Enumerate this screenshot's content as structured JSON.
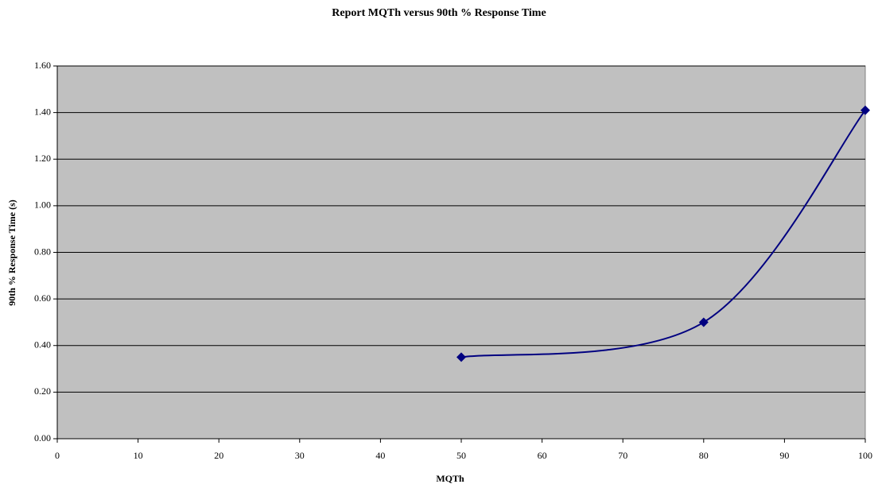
{
  "chart_data": {
    "type": "line",
    "title": "Report MQTh versus 90th % Response Time",
    "x_label": "MQTh",
    "y_label": "90th % Response Time (s)",
    "x": [
      50,
      80,
      100
    ],
    "series": [
      {
        "color": "#000080",
        "values": [
          0.35,
          0.5,
          1.41
        ]
      }
    ],
    "xlim": [
      0,
      100
    ],
    "xticks": [
      0,
      10,
      20,
      30,
      40,
      50,
      60,
      70,
      80,
      90,
      100
    ],
    "ylim": [
      0,
      1.6
    ],
    "yticks": [
      {
        "value": 0,
        "label": "0.00"
      },
      {
        "value": 0.2,
        "label": "0.20"
      },
      {
        "value": 0.4,
        "label": "0.40"
      },
      {
        "value": 0.6,
        "label": "0.60"
      },
      {
        "value": 0.8,
        "label": "0.80"
      },
      {
        "value": 1.0,
        "label": "1.00"
      },
      {
        "value": 1.2,
        "label": "1.20"
      },
      {
        "value": 1.4,
        "label": "1.40"
      },
      {
        "value": 1.6,
        "label": "1.60"
      }
    ],
    "grid": true,
    "plot_background": "#c0c0c0",
    "smooth": true,
    "marker": "diamond"
  }
}
